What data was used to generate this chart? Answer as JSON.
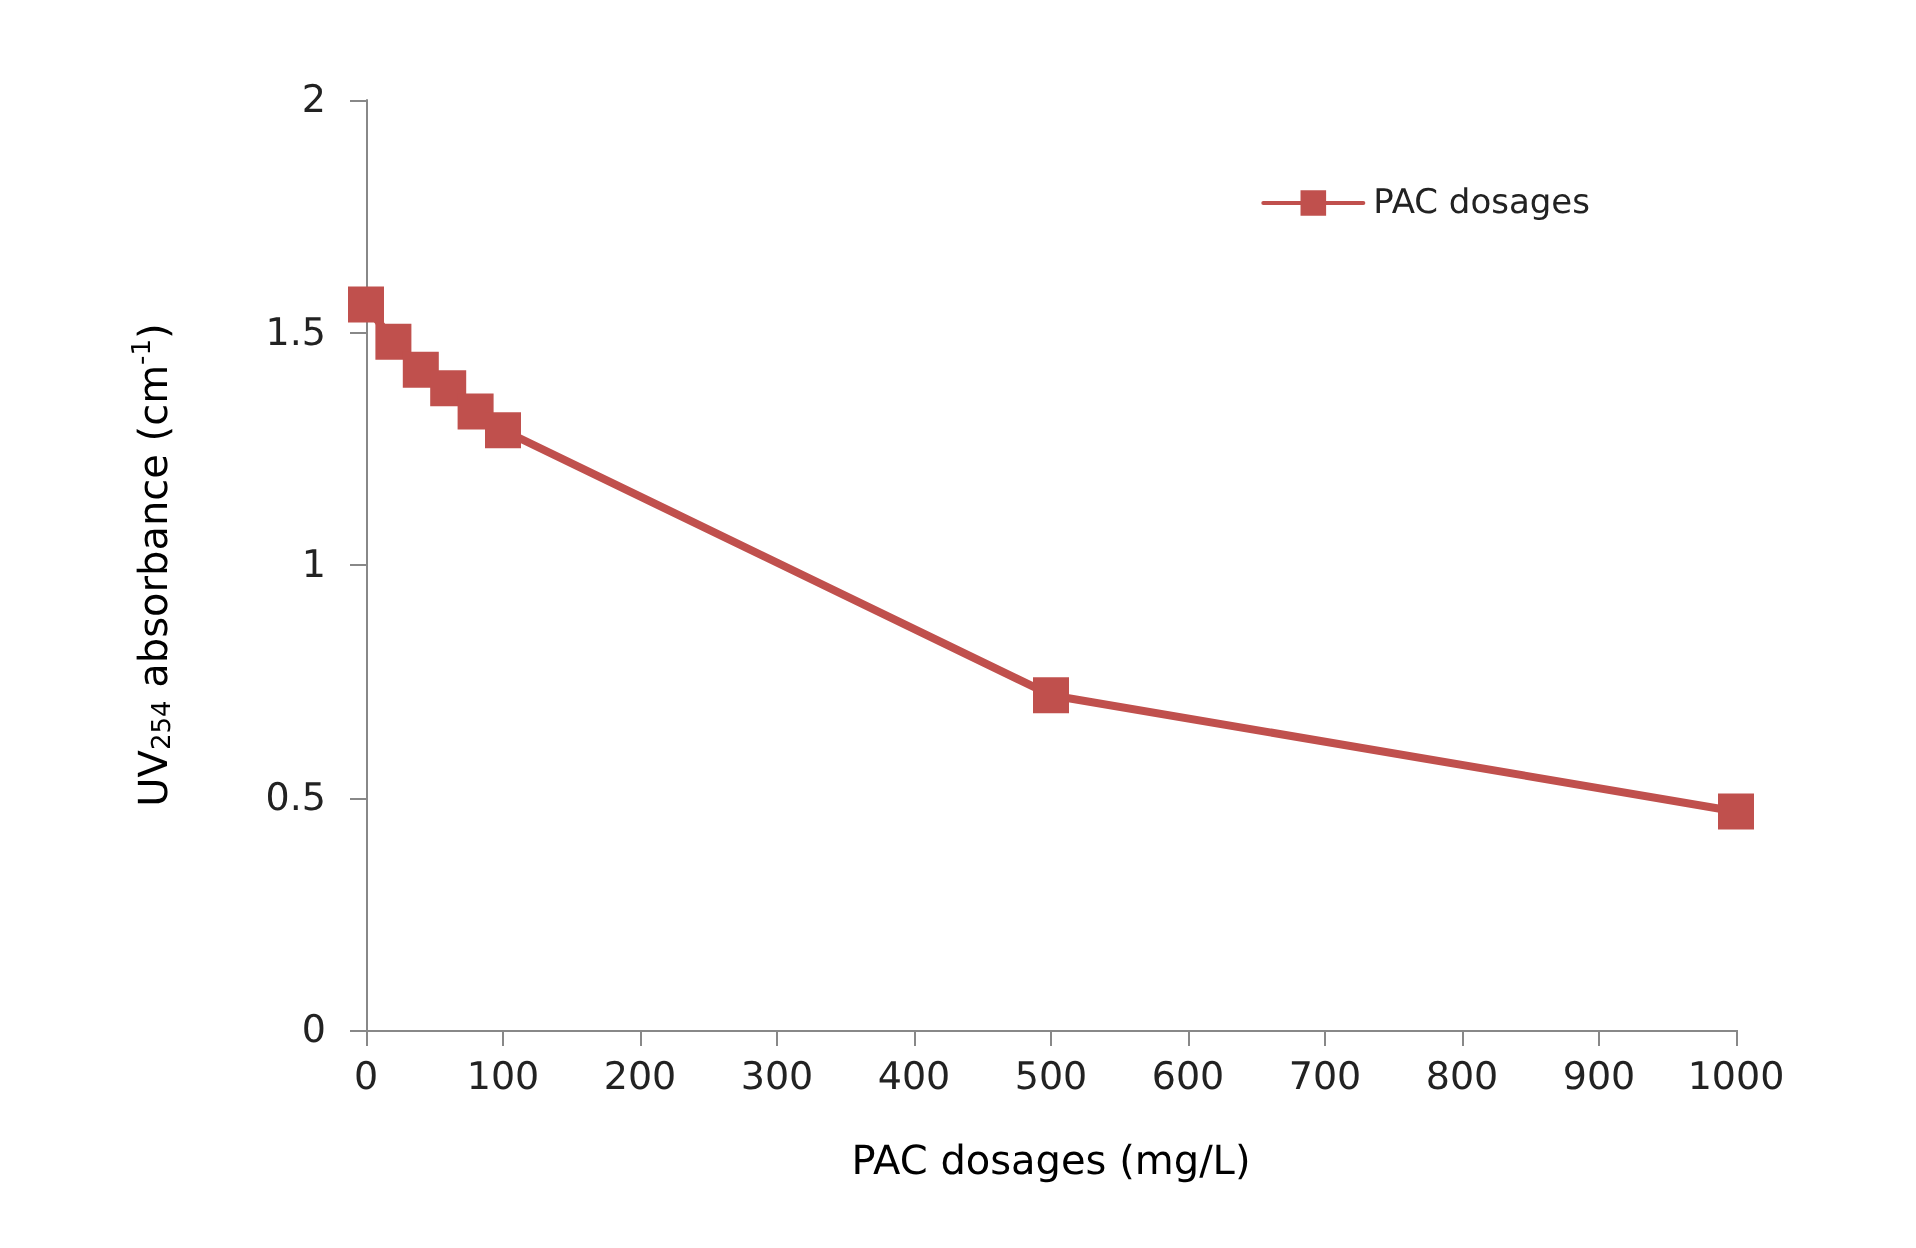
{
  "chart_data": {
    "type": "line",
    "xlabel": "PAC dosages (mg/L)",
    "ylabel": "UV$_{254}$ absorbance (cm$^{-1}$)",
    "x": [
      0,
      20,
      40,
      60,
      80,
      100,
      500,
      1000
    ],
    "series": [
      {
        "name": "PAC dosages",
        "color": "#c0504d",
        "values": [
          1.56,
          1.48,
          1.42,
          1.38,
          1.33,
          1.29,
          0.72,
          0.47
        ]
      }
    ],
    "xlim": [
      0,
      1000
    ],
    "xticks": [
      0,
      100,
      200,
      300,
      400,
      500,
      600,
      700,
      800,
      900,
      1000
    ],
    "ylim": [
      0,
      2
    ],
    "yticks": [
      0,
      0.5,
      1,
      1.5,
      2
    ],
    "grid": false,
    "legend": "top right",
    "marker": "square",
    "line_style": "solid"
  }
}
